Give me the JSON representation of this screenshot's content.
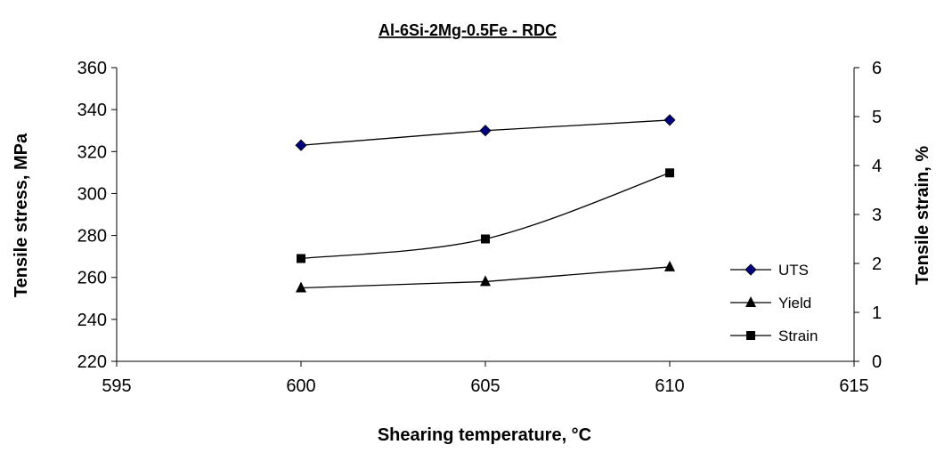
{
  "chart_data": {
    "type": "line",
    "title": "Al-6Si-2Mg-0.5Fe - RDC",
    "xlabel": "Shearing temperature, °C",
    "ylabel": "Tensile stress, MPa",
    "y2label": "Tensile strain, %",
    "xlim": [
      595,
      615
    ],
    "xticks": [
      595,
      600,
      605,
      610,
      615
    ],
    "ylim": [
      220,
      360
    ],
    "yticks": [
      220,
      240,
      260,
      280,
      300,
      320,
      340,
      360
    ],
    "y2lim": [
      0,
      6
    ],
    "y2ticks": [
      0,
      1,
      2,
      3,
      4,
      5,
      6
    ],
    "grid": false,
    "legend_position": "right",
    "x": [
      600,
      605,
      610
    ],
    "series": [
      {
        "name": "UTS",
        "axis": "left",
        "marker": "diamond",
        "values": [
          323,
          330,
          335
        ]
      },
      {
        "name": "Yield",
        "axis": "left",
        "marker": "triangle",
        "values": [
          255,
          258,
          265
        ]
      },
      {
        "name": "Strain",
        "axis": "right",
        "marker": "square",
        "values": [
          2.1,
          2.5,
          3.85
        ]
      }
    ],
    "colors": {
      "UTS_marker": "#00007f",
      "line": "#000000",
      "marker": "#000000"
    }
  }
}
